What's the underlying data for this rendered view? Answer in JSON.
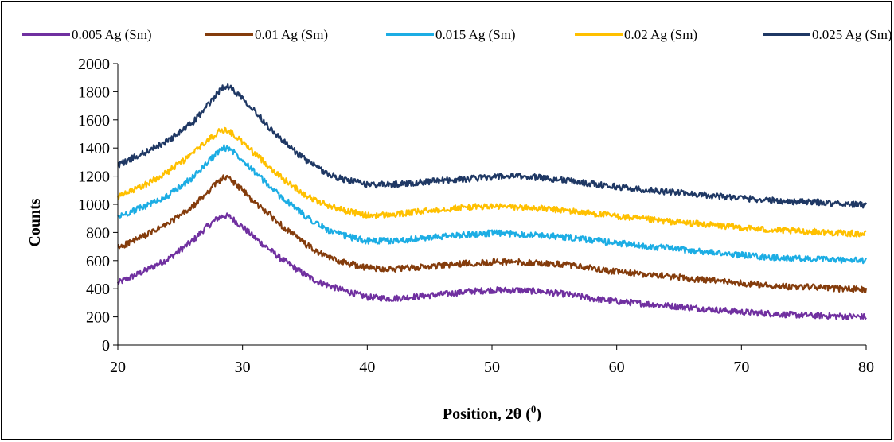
{
  "chart_data": {
    "type": "line",
    "title": "",
    "xlabel": "Position, 2θ (",
    "xlabel_sup": "0",
    "xlabel_close": ")",
    "ylabel": "Counts",
    "xlim": [
      20,
      80
    ],
    "ylim": [
      0,
      2000
    ],
    "xticks": [
      20,
      30,
      40,
      50,
      60,
      70,
      80
    ],
    "yticks": [
      0,
      200,
      400,
      600,
      800,
      1000,
      1200,
      1400,
      1600,
      1800,
      2000
    ],
    "grid": false,
    "legend_position": "top",
    "series": [
      {
        "name": "0.005 Ag (Sm)",
        "color": "#7030A0",
        "x": [
          20,
          22,
          24,
          26,
          27,
          28,
          28.5,
          29,
          30,
          31,
          32,
          33,
          34,
          35,
          36,
          37,
          38,
          40,
          42,
          44,
          46,
          48,
          50,
          52,
          54,
          56,
          58,
          60,
          62,
          64,
          66,
          68,
          70,
          72,
          74,
          76,
          78,
          80
        ],
        "y": [
          440,
          520,
          610,
          740,
          830,
          900,
          920,
          910,
          840,
          760,
          690,
          620,
          560,
          500,
          450,
          420,
          390,
          340,
          330,
          345,
          360,
          380,
          390,
          390,
          380,
          360,
          330,
          310,
          295,
          280,
          265,
          250,
          235,
          225,
          215,
          210,
          205,
          200
        ]
      },
      {
        "name": "0.01 Ag (Sm)",
        "color": "#843C0C",
        "x": [
          20,
          22,
          24,
          26,
          27,
          28,
          28.5,
          29,
          30,
          31,
          32,
          33,
          34,
          35,
          36,
          37,
          38,
          40,
          42,
          44,
          46,
          48,
          50,
          52,
          54,
          56,
          58,
          60,
          62,
          64,
          66,
          68,
          70,
          72,
          74,
          76,
          78,
          80
        ],
        "y": [
          690,
          770,
          860,
          980,
          1070,
          1160,
          1190,
          1180,
          1100,
          1010,
          940,
          860,
          790,
          720,
          660,
          620,
          590,
          550,
          540,
          550,
          565,
          580,
          590,
          590,
          580,
          570,
          545,
          520,
          505,
          490,
          470,
          455,
          440,
          425,
          415,
          410,
          400,
          395
        ]
      },
      {
        "name": "0.015 Ag (Sm)",
        "color": "#1CADE4",
        "x": [
          20,
          22,
          24,
          26,
          27,
          28,
          28.5,
          29,
          30,
          31,
          32,
          33,
          34,
          35,
          36,
          37,
          38,
          40,
          42,
          44,
          46,
          48,
          50,
          52,
          54,
          56,
          58,
          60,
          62,
          64,
          66,
          68,
          70,
          72,
          74,
          76,
          78,
          80
        ],
        "y": [
          910,
          980,
          1060,
          1190,
          1280,
          1370,
          1400,
          1395,
          1320,
          1230,
          1140,
          1060,
          990,
          920,
          860,
          810,
          780,
          740,
          740,
          755,
          770,
          785,
          795,
          790,
          780,
          765,
          745,
          725,
          705,
          690,
          670,
          655,
          640,
          625,
          615,
          610,
          605,
          600
        ]
      },
      {
        "name": "0.02 Ag (Sm)",
        "color": "#FFC000",
        "x": [
          20,
          22,
          24,
          26,
          27,
          28,
          28.5,
          29,
          30,
          31,
          32,
          33,
          34,
          35,
          36,
          37,
          38,
          40,
          42,
          44,
          46,
          48,
          50,
          52,
          54,
          56,
          58,
          60,
          62,
          64,
          66,
          68,
          70,
          72,
          74,
          76,
          78,
          80
        ],
        "y": [
          1050,
          1130,
          1230,
          1360,
          1440,
          1510,
          1530,
          1515,
          1440,
          1360,
          1280,
          1200,
          1130,
          1070,
          1020,
          990,
          960,
          920,
          925,
          945,
          965,
          980,
          985,
          980,
          970,
          955,
          935,
          915,
          895,
          880,
          865,
          850,
          835,
          820,
          810,
          805,
          795,
          790
        ]
      },
      {
        "name": "0.025 Ag (Sm)",
        "color": "#1F3864",
        "x": [
          20,
          22,
          24,
          26,
          27,
          28,
          28.5,
          29,
          30,
          31,
          32,
          33,
          34,
          35,
          36,
          37,
          38,
          40,
          42,
          44,
          46,
          48,
          50,
          52,
          54,
          56,
          58,
          60,
          62,
          64,
          66,
          68,
          70,
          72,
          74,
          76,
          78,
          80
        ],
        "y": [
          1280,
          1360,
          1450,
          1580,
          1680,
          1790,
          1840,
          1830,
          1760,
          1660,
          1560,
          1470,
          1390,
          1320,
          1260,
          1210,
          1180,
          1140,
          1140,
          1155,
          1170,
          1180,
          1195,
          1200,
          1190,
          1170,
          1145,
          1125,
          1105,
          1090,
          1075,
          1060,
          1045,
          1030,
          1020,
          1015,
          1005,
          995
        ]
      }
    ]
  }
}
